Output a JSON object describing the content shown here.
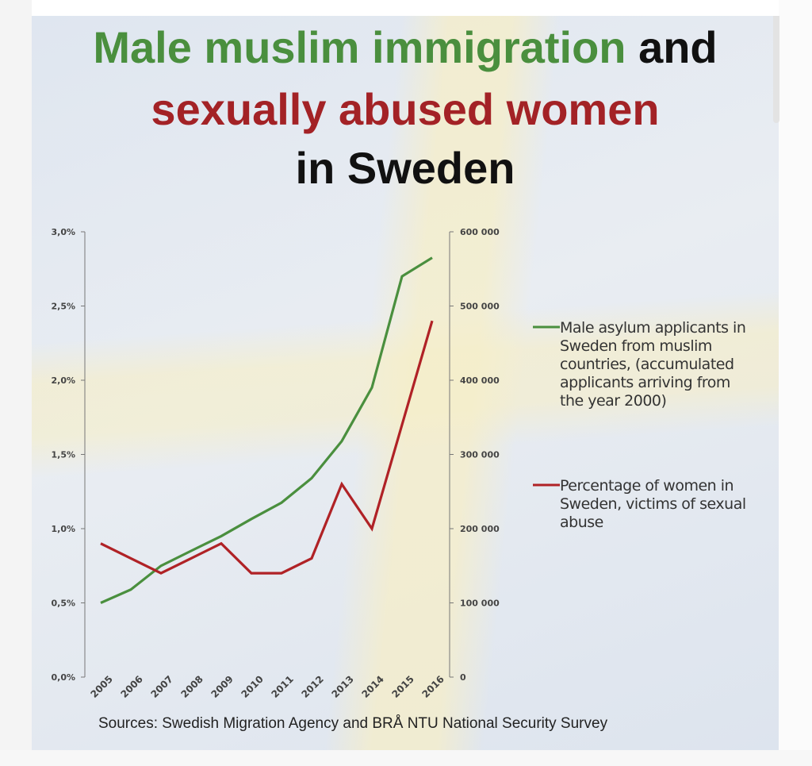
{
  "title": {
    "line1_green": "Male muslim immigration",
    "line1_dark": "and",
    "line2_red": "sexually abused women",
    "line3": "in Sweden"
  },
  "source": "Sources: Swedish Migration Agency and BRÅ NTU National Security Survey",
  "colors": {
    "green": "#4a8f3e",
    "red": "#b02226",
    "axis": "#777777",
    "tick_text": "#444444"
  },
  "chart_data": {
    "type": "line",
    "categories": [
      "2005",
      "2006",
      "2007",
      "2008",
      "2009",
      "2010",
      "2011",
      "2012",
      "2013",
      "2014",
      "2015",
      "2016"
    ],
    "left_axis": {
      "ticks": [
        "0,0%",
        "0,5%",
        "1,0%",
        "1,5%",
        "2,0%",
        "2,5%",
        "3,0%"
      ],
      "ylim": [
        0,
        3.0
      ]
    },
    "right_axis": {
      "ticks": [
        "0",
        "100 000",
        "200 000",
        "300 000",
        "400 000",
        "500 000",
        "600 000"
      ],
      "ylim": [
        0,
        600000
      ]
    },
    "series": [
      {
        "name": "Male asylum applicants in Sweden from muslim countries, (accumulated applicants arriving from the year 2000)",
        "axis": "right",
        "color": "#4a8f3e",
        "values": [
          100000,
          118000,
          150000,
          170000,
          190000,
          213000,
          235000,
          268000,
          318000,
          390000,
          540000,
          565000
        ]
      },
      {
        "name": "Percentage of women in Sweden, victims of sexual abuse",
        "axis": "left",
        "color": "#b02226",
        "values": [
          0.9,
          0.8,
          0.7,
          0.8,
          0.9,
          0.7,
          0.7,
          0.8,
          1.3,
          1.0,
          1.7,
          2.4
        ]
      }
    ],
    "grid": false,
    "legend_position": "right"
  }
}
